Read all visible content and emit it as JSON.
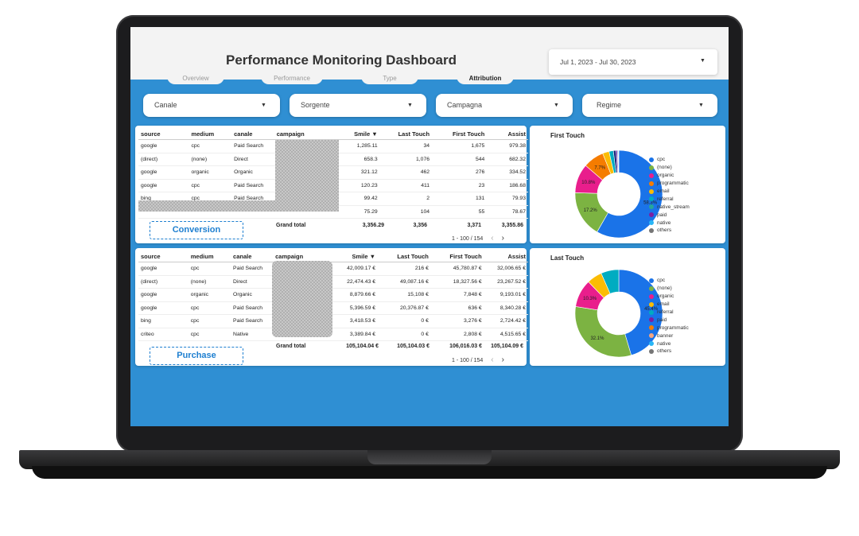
{
  "title": "Performance Monitoring Dashboard",
  "date_range": "Jul 1, 2023 - Jul 30, 2023",
  "tabs": [
    "Overview",
    "Performance",
    "Type",
    "Attribution"
  ],
  "active_tab": "Attribution",
  "filters": [
    "Canale",
    "Sorgente",
    "Campagna",
    "Regime"
  ],
  "conversion_table": {
    "label": "Conversion",
    "columns": [
      "source",
      "medium",
      "canale",
      "campaign",
      "Smile ▼",
      "Last Touch",
      "First Touch",
      "Assist"
    ],
    "rows": [
      [
        "google",
        "cpc",
        "Paid Search",
        "",
        "1,285.11",
        "34",
        "1,675",
        "979.38"
      ],
      [
        "(direct)",
        "(none)",
        "Direct",
        "",
        "658.3",
        "1,076",
        "544",
        "682.32"
      ],
      [
        "google",
        "organic",
        "Organic",
        "",
        "321.12",
        "462",
        "276",
        "334.52"
      ],
      [
        "google",
        "cpc",
        "Paid Search",
        "",
        "120.23",
        "411",
        "23",
        "186.68"
      ],
      [
        "bing",
        "cpc",
        "Paid Search",
        "",
        "99.42",
        "2",
        "131",
        "79.93"
      ],
      [
        "",
        "",
        "",
        "",
        "75.29",
        "104",
        "55",
        "78.67"
      ]
    ],
    "grand_total": {
      "label": "Grand total",
      "values": [
        "3,356.29",
        "3,356",
        "3,371",
        "3,355.86"
      ]
    },
    "pagination": "1 - 100 / 154"
  },
  "purchase_table": {
    "label": "Purchase",
    "columns": [
      "source",
      "medium",
      "canale",
      "campaign",
      "Smile ▼",
      "Last Touch",
      "First Touch",
      "Assist"
    ],
    "rows": [
      [
        "google",
        "cpc",
        "Paid Search",
        "",
        "42,009.17 €",
        "216 €",
        "45,780.87 €",
        "32,006.65 €"
      ],
      [
        "(direct)",
        "(none)",
        "Direct",
        "",
        "22,474.43 €",
        "49,087.16 €",
        "18,327.56 €",
        "23,267.52 €"
      ],
      [
        "google",
        "organic",
        "Organic",
        "",
        "8,879.66 €",
        "15,108 €",
        "7,848 €",
        "9,193.01 €"
      ],
      [
        "google",
        "cpc",
        "Paid Search",
        "",
        "5,396.59 €",
        "20,376.87 €",
        "636 €",
        "8,340.28 €"
      ],
      [
        "bing",
        "cpc",
        "Paid Search",
        "",
        "3,418.53 €",
        "0 €",
        "3,276 €",
        "2,724.42 €"
      ],
      [
        "criteo",
        "cpc",
        "Native",
        "",
        "3,389.84 €",
        "0 €",
        "2,808 €",
        "4,515.65 €"
      ]
    ],
    "grand_total": {
      "label": "Grand total",
      "values": [
        "105,104.04 €",
        "105,104.03 €",
        "106,016.03 €",
        "105,104.09 €"
      ]
    },
    "pagination": "1 - 100 / 154"
  },
  "chart_data": [
    {
      "type": "pie",
      "title": "First Touch",
      "donut": true,
      "slices": [
        {
          "label": "cpc",
          "value": 58.3,
          "color": "#1a73e8",
          "display": "58.3%"
        },
        {
          "label": "(none)",
          "value": 17.2,
          "color": "#7cb342",
          "display": "17.2%"
        },
        {
          "label": "organic",
          "value": 10.8,
          "color": "#e91e8c",
          "display": "10.8%"
        },
        {
          "label": "email",
          "value": 7.7,
          "color": "#f57c00",
          "display": "7.7%"
        },
        {
          "label": "programmatic",
          "value": 2.4,
          "color": "#fbbc04",
          "display": ""
        },
        {
          "label": "referral",
          "value": 1.6,
          "color": "#00acc1",
          "display": ""
        },
        {
          "label": "native_stream",
          "value": 1.0,
          "color": "#1a237e",
          "display": ""
        },
        {
          "label": "paid",
          "value": 0.5,
          "color": "#7b1fa2",
          "display": ""
        },
        {
          "label": "native",
          "value": 0.3,
          "color": "#29b6f6",
          "display": ""
        },
        {
          "label": "others",
          "value": 0.2,
          "color": "#757575",
          "display": ""
        }
      ],
      "legend": [
        "cpc",
        "(none)",
        "organic",
        "programmatic",
        "email",
        "referral",
        "native_stream",
        "paid",
        "native",
        "others"
      ],
      "legend_colors": [
        "#1a73e8",
        "#7cb342",
        "#e91e8c",
        "#f57c00",
        "#fbbc04",
        "#00acc1",
        "#26a69a",
        "#7b1fa2",
        "#29b6f6",
        "#757575"
      ]
    },
    {
      "type": "pie",
      "title": "Last Touch",
      "donut": true,
      "slices": [
        {
          "label": "cpc",
          "value": 45.4,
          "color": "#1a73e8",
          "display": "45.4%"
        },
        {
          "label": "(none)",
          "value": 32.1,
          "color": "#7cb342",
          "display": "32.1%"
        },
        {
          "label": "organic",
          "value": 10.3,
          "color": "#e91e8c",
          "display": "10.3%"
        },
        {
          "label": "email",
          "value": 5.6,
          "color": "#fbbc04",
          "display": ""
        },
        {
          "label": "referral",
          "value": 6.6,
          "color": "#00acc1",
          "display": ""
        }
      ],
      "legend": [
        "cpc",
        "(none)",
        "organic",
        "email",
        "referral",
        "paid",
        "programmatic",
        "banner",
        "native",
        "others"
      ],
      "legend_colors": [
        "#1a73e8",
        "#7cb342",
        "#e91e8c",
        "#fbbc04",
        "#00acc1",
        "#7b1fa2",
        "#f57c00",
        "#f4a582",
        "#29b6f6",
        "#757575"
      ]
    }
  ]
}
